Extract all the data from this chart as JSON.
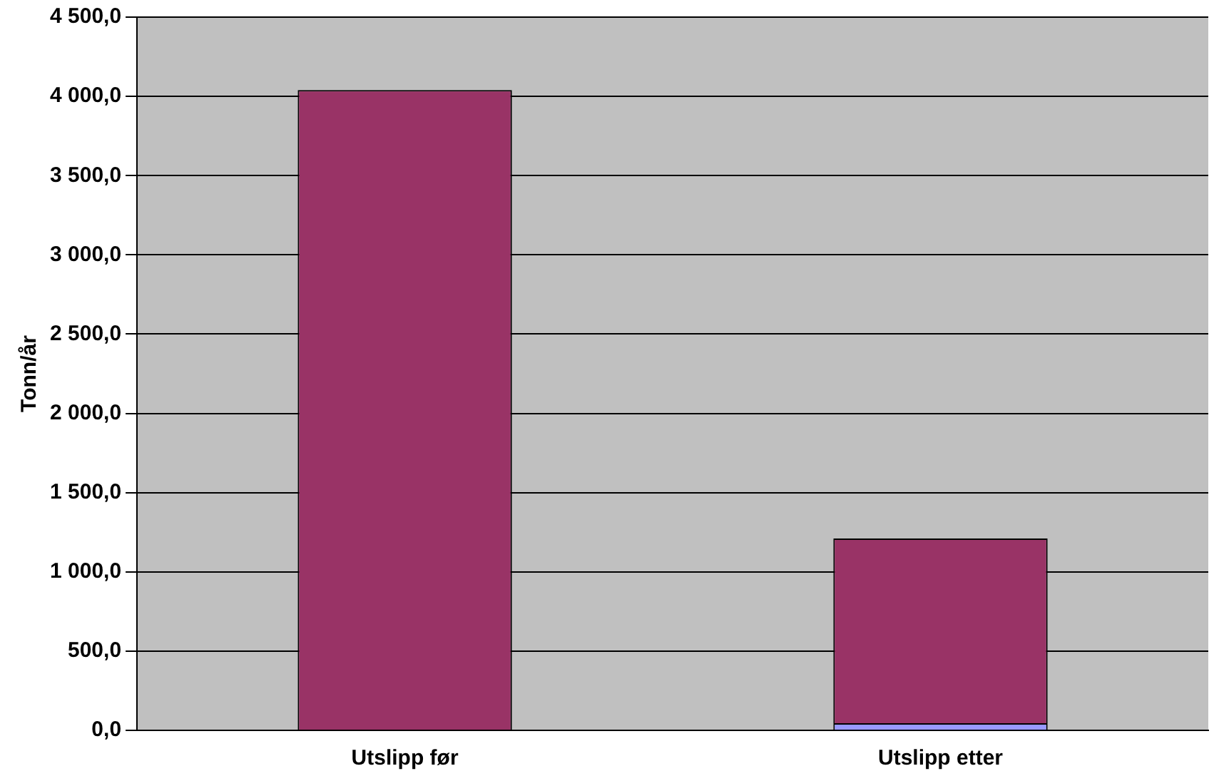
{
  "chart_data": {
    "type": "bar",
    "ylabel": "Tonn/år",
    "categories": [
      "Utslipp før",
      "Utslipp etter"
    ],
    "stacked": true,
    "series": [
      {
        "color": "#9999ff",
        "values": [
          0,
          45
        ]
      },
      {
        "color": "#993366",
        "values": [
          4040,
          1165
        ]
      }
    ],
    "ylim": [
      0,
      4500
    ],
    "yticks": [
      {
        "value": 0,
        "label": "0,0"
      },
      {
        "value": 500,
        "label": "500,0"
      },
      {
        "value": 1000,
        "label": "1 000,0"
      },
      {
        "value": 1500,
        "label": "1 500,0"
      },
      {
        "value": 2000,
        "label": "2 000,0"
      },
      {
        "value": 2500,
        "label": "2 500,0"
      },
      {
        "value": 3000,
        "label": "3 000,0"
      },
      {
        "value": 3500,
        "label": "3 500,0"
      },
      {
        "value": 4000,
        "label": "4 000,0"
      },
      {
        "value": 4500,
        "label": "4 500,0"
      }
    ],
    "grid": "y",
    "legend": false
  }
}
